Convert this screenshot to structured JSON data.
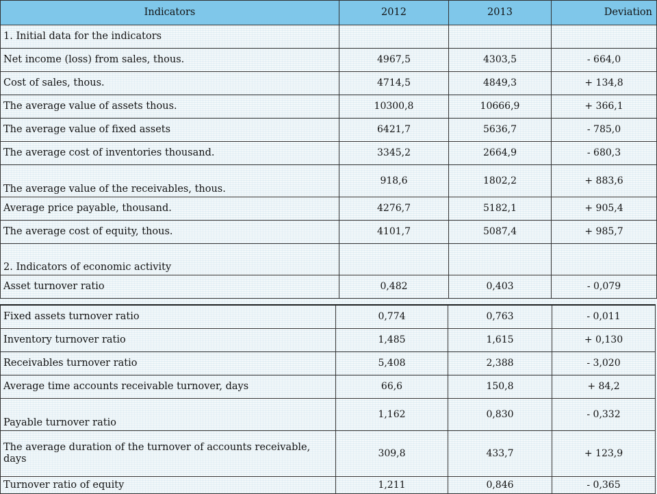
{
  "table": {
    "headers": {
      "indicator": "Indicators",
      "y2012": "2012",
      "y2013": "2013",
      "deviation": "Deviation"
    },
    "section1": "1. Initial data for the indicators",
    "section2": "2. Indicators of economic activity",
    "rows1": [
      {
        "label": "Net income (loss) from sales, thous.",
        "y2012": "4967,5",
        "y2013": "4303,5",
        "dev": "- 664,0"
      },
      {
        "label": "Cost of sales, thous.",
        "y2012": "4714,5",
        "y2013": "4849,3",
        "dev": "+ 134,8"
      },
      {
        "label": "The average value of assets thous.",
        "y2012": "10300,8",
        "y2013": "10666,9",
        "dev": "+ 366,1"
      },
      {
        "label": "The average value of fixed assets",
        "y2012": "6421,7",
        "y2013": "5636,7",
        "dev": "- 785,0"
      },
      {
        "label": "The average cost of inventories thousand.",
        "y2012": "3345,2",
        "y2013": "2664,9",
        "dev": "- 680,3"
      },
      {
        "label": "The average value of the receivables, thous.",
        "y2012": "918,6",
        "y2013": "1802,2",
        "dev": "+ 883,6"
      },
      {
        "label": "Average price payable, thousand.",
        "y2012": "4276,7",
        "y2013": "5182,1",
        "dev": "+ 905,4"
      },
      {
        "label": "The average cost of equity, thous.",
        "y2012": "4101,7",
        "y2013": "5087,4",
        "dev": "+ 985,7"
      }
    ],
    "asset_turnover": {
      "label": "Asset turnover ratio",
      "y2012": "0,482",
      "y2013": "0,403",
      "dev": "- 0,079"
    },
    "rows2": [
      {
        "label": "Fixed assets turnover ratio",
        "y2012": "0,774",
        "y2013": "0,763",
        "dev": "- 0,011"
      },
      {
        "label": "Inventory turnover ratio",
        "y2012": "1,485",
        "y2013": "1,615",
        "dev": "+ 0,130"
      },
      {
        "label": "Receivables turnover ratio",
        "y2012": "5,408",
        "y2013": "2,388",
        "dev": "- 3,020"
      },
      {
        "label": "Average time accounts receivable turnover, days",
        "y2012": "66,6",
        "y2013": "150,8",
        "dev": "+ 84,2"
      },
      {
        "label": "Payable turnover ratio",
        "y2012": "1,162",
        "y2013": "0,830",
        "dev": "- 0,332"
      },
      {
        "label": "The average duration of the turnover of accounts receivable, days",
        "y2012": "309,8",
        "y2013": "433,7",
        "dev": "+ 123,9"
      },
      {
        "label": "Turnover ratio of equity",
        "y2012": "1,211",
        "y2013": "0,846",
        "dev": "- 0,365"
      }
    ]
  },
  "colors": {
    "header_bg": "#7fc7ea",
    "background": "#f3f8fa",
    "grid": "#333333"
  }
}
